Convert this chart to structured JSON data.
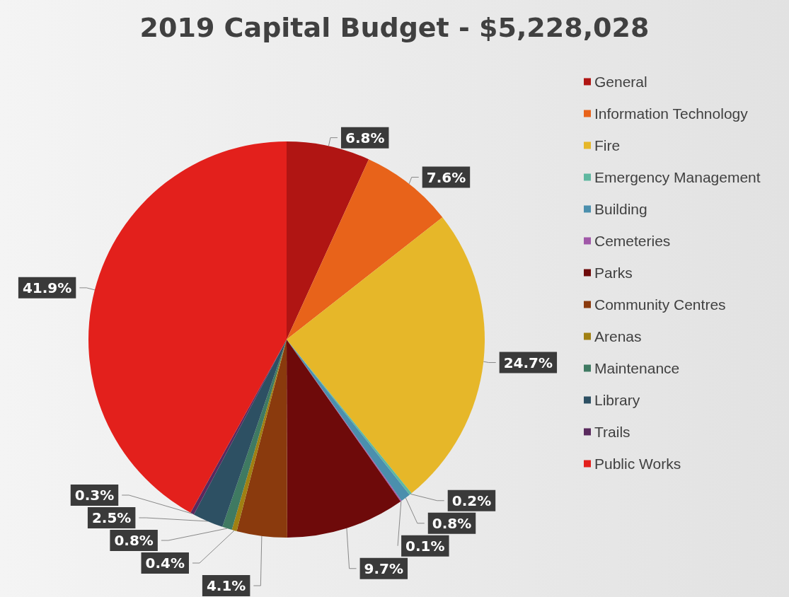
{
  "chart_data": {
    "type": "pie",
    "title": "2019 Capital Budget - $5,228,028",
    "categories": [
      "General",
      "Information Technology",
      "Fire",
      "Emergency Management",
      "Building",
      "Cemeteries",
      "Parks",
      "Community Centres",
      "Arenas",
      "Maintenance",
      "Library",
      "Trails",
      "Public Works"
    ],
    "values": [
      6.8,
      7.6,
      24.7,
      0.2,
      0.8,
      0.1,
      9.7,
      4.1,
      0.4,
      0.8,
      2.5,
      0.3,
      41.9
    ],
    "colors": [
      "#b01513",
      "#e8631a",
      "#e6b729",
      "#5fb8a0",
      "#4b8fad",
      "#a058a8",
      "#6e0a0a",
      "#8a3a0d",
      "#a08012",
      "#3f7a62",
      "#2d5063",
      "#5a2a5e",
      "#e3201c"
    ],
    "value_labels": [
      "6.8%",
      "7.6%",
      "24.7%",
      "0.2%",
      "0.8%",
      "0.1%",
      "9.7%",
      "4.1%",
      "0.4%",
      "0.8%",
      "2.5%",
      "0.3%",
      "41.9%"
    ],
    "legend": "right"
  }
}
